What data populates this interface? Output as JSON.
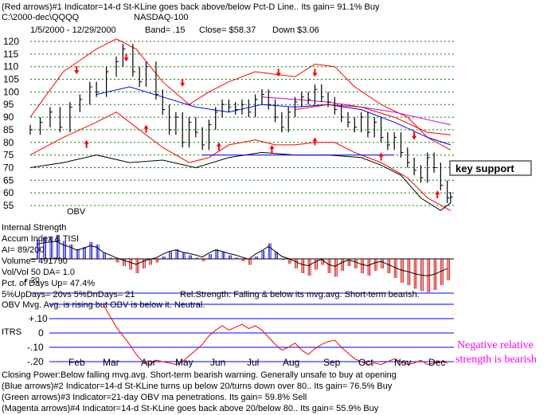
{
  "header": {
    "line1": "(Red arrows)#1 Indicator=14-d St-KLine goes back above/below Pct-D Line.. Its gain= 91.1% Buy",
    "line2": "C:\\2000-dec\\QQQQ",
    "title": "NASDAQ-100",
    "line3_dates": "1/5/2000 - 12/29/2000",
    "line3_band": "Band= .15",
    "line3_close": "Close= $58.37",
    "line3_change": "Down $3.06"
  },
  "annotations": {
    "key_support": "key support",
    "obv": "OBV",
    "negative_rs_1": "Negative relative",
    "negative_rs_2": "strength is bearish"
  },
  "stats": {
    "internal_strength": "Internal Strength",
    "accum": "Accum Index & TISI",
    "ai": "AI= 89/200",
    "volume": "Volume= 491790",
    "volvol": "Vol/Vol 50 DA= 1.0",
    "pct_up": "Pct. of Days Up= 47.4%",
    "updays": "5%UpDays= 20vs 5%DnDays= 21",
    "relstrength": "Rel.Strength: Falling & below its mvg.avg. Short-term bearish.",
    "obv_note": "OBV Mvg. Avg. is rising but OBV is below it. Neutral.",
    "ai_label_20": "+.20"
  },
  "itrs": {
    "label": "ITRS",
    "ticks": [
      "+.20",
      "+.10",
      "0",
      "-.10",
      "-.20"
    ]
  },
  "footer": {
    "line1": "Closing Power:Below falling mvg.avg. Short-term bearish warning. Generally unsafe to buy at opening",
    "line2": "(Blue arrows)#2 Indicator=14-d St-KLine turns up below 20/turns down over 80.. Its gain= 76.5% Buy",
    "line3": "(Green arrows)#3 Indicator=21-day OBV ma penetrations. Its gain= 59.8% Sell",
    "line4": "(Magenta arrows)#4 Indicator=14-d St-KLine goes back above 20/below 80.. Its gain= 55.9% Buy"
  },
  "colors": {
    "price": "#000000",
    "bands": "#ff0000",
    "mavg_blue": "#0000ff",
    "mavg_magenta": "#cc00cc",
    "grid": "#008000",
    "accum_pos": "#0000cc",
    "accum_neg": "#cc0000",
    "itrs": "#ff0000",
    "note": "#ff00ff"
  },
  "chart_data": {
    "type": "line",
    "title": "NASDAQ-100",
    "price_panel": {
      "y_ticks": [
        120,
        115,
        110,
        105,
        100,
        95,
        90,
        85,
        80,
        75,
        70,
        65,
        60,
        55
      ],
      "ylim": [
        53,
        122
      ],
      "months": [
        "Feb",
        "Mar",
        "Apr",
        "May",
        "Jun",
        "Jul",
        "Aug",
        "Sep",
        "Oct",
        "Nov",
        "Dec"
      ],
      "close_series": [
        [
          0,
          85
        ],
        [
          3,
          88
        ],
        [
          6,
          92
        ],
        [
          9,
          86
        ],
        [
          12,
          94
        ],
        [
          15,
          97
        ],
        [
          18,
          102
        ],
        [
          20,
          100
        ],
        [
          23,
          108
        ],
        [
          26,
          112
        ],
        [
          28,
          117
        ],
        [
          31,
          108
        ],
        [
          33,
          104
        ],
        [
          35,
          110
        ],
        [
          38,
          99
        ],
        [
          40,
          93
        ],
        [
          42,
          85
        ],
        [
          44,
          90
        ],
        [
          46,
          80
        ],
        [
          48,
          88
        ],
        [
          50,
          84
        ],
        [
          52,
          79
        ],
        [
          54,
          87
        ],
        [
          56,
          92
        ],
        [
          58,
          95
        ],
        [
          60,
          94
        ],
        [
          62,
          93
        ],
        [
          64,
          95
        ],
        [
          66,
          92
        ],
        [
          68,
          97
        ],
        [
          70,
          99
        ],
        [
          72,
          95
        ],
        [
          74,
          90
        ],
        [
          76,
          86
        ],
        [
          78,
          92
        ],
        [
          80,
          96
        ],
        [
          82,
          98
        ],
        [
          84,
          97
        ],
        [
          86,
          101
        ],
        [
          88,
          98
        ],
        [
          90,
          96
        ],
        [
          92,
          93
        ],
        [
          94,
          90
        ],
        [
          96,
          88
        ],
        [
          98,
          86
        ],
        [
          100,
          90
        ],
        [
          102,
          84
        ],
        [
          104,
          88
        ],
        [
          106,
          82
        ],
        [
          108,
          79
        ],
        [
          110,
          82
        ],
        [
          112,
          76
        ],
        [
          114,
          72
        ],
        [
          116,
          69
        ],
        [
          118,
          66
        ],
        [
          120,
          74
        ],
        [
          122,
          70
        ],
        [
          124,
          63
        ],
        [
          126,
          58
        ],
        [
          127,
          58.37
        ]
      ],
      "upper_band": [
        [
          0,
          90
        ],
        [
          10,
          108
        ],
        [
          20,
          117
        ],
        [
          26,
          121
        ],
        [
          32,
          117
        ],
        [
          40,
          104
        ],
        [
          48,
          95
        ],
        [
          54,
          100
        ],
        [
          60,
          104
        ],
        [
          68,
          108
        ],
        [
          74,
          107
        ],
        [
          80,
          106
        ],
        [
          86,
          111
        ],
        [
          92,
          110
        ],
        [
          98,
          102
        ],
        [
          106,
          95
        ],
        [
          114,
          90
        ],
        [
          120,
          82
        ],
        [
          127,
          77
        ]
      ],
      "lower_band": [
        [
          0,
          75
        ],
        [
          10,
          82
        ],
        [
          20,
          88
        ],
        [
          26,
          92
        ],
        [
          32,
          86
        ],
        [
          40,
          78
        ],
        [
          48,
          72
        ],
        [
          54,
          74
        ],
        [
          60,
          79
        ],
        [
          68,
          81
        ],
        [
          74,
          79
        ],
        [
          80,
          79
        ],
        [
          86,
          80
        ],
        [
          92,
          80
        ],
        [
          98,
          76
        ],
        [
          106,
          72
        ],
        [
          114,
          66
        ],
        [
          120,
          58
        ],
        [
          127,
          53
        ]
      ],
      "ma_blue": [
        [
          20,
          99
        ],
        [
          30,
          102
        ],
        [
          40,
          98
        ],
        [
          50,
          94
        ],
        [
          60,
          92
        ],
        [
          70,
          95
        ],
        [
          80,
          94
        ],
        [
          90,
          95
        ],
        [
          100,
          93
        ],
        [
          110,
          88
        ],
        [
          120,
          82
        ],
        [
          127,
          79
        ]
      ],
      "ma_magenta": [
        [
          70,
          98
        ],
        [
          80,
          97
        ],
        [
          90,
          96
        ],
        [
          100,
          94
        ],
        [
          110,
          92
        ],
        [
          120,
          89
        ],
        [
          127,
          87
        ]
      ],
      "ma_red_upper": [
        [
          80,
          93
        ],
        [
          90,
          95
        ],
        [
          100,
          94
        ],
        [
          110,
          90
        ],
        [
          120,
          84
        ],
        [
          127,
          83
        ]
      ],
      "obv": [
        [
          0,
          70
        ],
        [
          10,
          72
        ],
        [
          20,
          75
        ],
        [
          30,
          72
        ],
        [
          40,
          73
        ],
        [
          50,
          70
        ],
        [
          60,
          74
        ],
        [
          70,
          76
        ],
        [
          80,
          75
        ],
        [
          90,
          75
        ],
        [
          100,
          74
        ],
        [
          106,
          71
        ],
        [
          112,
          67
        ],
        [
          118,
          58
        ],
        [
          124,
          53
        ],
        [
          127,
          56
        ]
      ],
      "key_support_level": 75,
      "red_up_arrows": [
        [
          17,
          81
        ],
        [
          35,
          87
        ],
        [
          57,
          80
        ],
        [
          73,
          79
        ],
        [
          86,
          82
        ],
        [
          106,
          76
        ],
        [
          123,
          61
        ]
      ],
      "red_down_arrows": [
        [
          14,
          107
        ],
        [
          29,
          112
        ],
        [
          46,
          102
        ],
        [
          75,
          106
        ],
        [
          86,
          106
        ],
        [
          116,
          81
        ]
      ]
    },
    "accum_panel": {
      "ylim": [
        -0.3,
        0.3
      ],
      "bars": [
        [
          2,
          0.16
        ],
        [
          4,
          0.18
        ],
        [
          6,
          0.19
        ],
        [
          8,
          0.2
        ],
        [
          10,
          0.15
        ],
        [
          12,
          0.12
        ],
        [
          14,
          0.08
        ],
        [
          16,
          0.1
        ],
        [
          18,
          0.14
        ],
        [
          20,
          0.12
        ],
        [
          22,
          0.05
        ],
        [
          24,
          0.01
        ],
        [
          26,
          -0.03
        ],
        [
          28,
          -0.06
        ],
        [
          30,
          -0.09
        ],
        [
          32,
          -0.12
        ],
        [
          34,
          -0.08
        ],
        [
          36,
          -0.05
        ],
        [
          38,
          -0.03
        ],
        [
          40,
          0.02
        ],
        [
          42,
          0.06
        ],
        [
          44,
          0.08
        ],
        [
          46,
          0.05
        ],
        [
          48,
          0.03
        ],
        [
          50,
          0.01
        ],
        [
          52,
          -0.02
        ],
        [
          54,
          0.04
        ],
        [
          56,
          0.08
        ],
        [
          58,
          0.06
        ],
        [
          60,
          0.03
        ],
        [
          62,
          0.01
        ],
        [
          64,
          -0.02
        ],
        [
          66,
          -0.05
        ],
        [
          68,
          0.02
        ],
        [
          70,
          0.07
        ],
        [
          72,
          0.13
        ],
        [
          74,
          0.06
        ],
        [
          76,
          -0.01
        ],
        [
          78,
          -0.04
        ],
        [
          80,
          -0.08
        ],
        [
          82,
          -0.12
        ],
        [
          84,
          -0.14
        ],
        [
          86,
          -0.09
        ],
        [
          88,
          -0.05
        ],
        [
          90,
          -0.12
        ],
        [
          92,
          -0.15
        ],
        [
          94,
          -0.1
        ],
        [
          96,
          -0.06
        ],
        [
          98,
          -0.08
        ],
        [
          100,
          -0.12
        ],
        [
          102,
          -0.14
        ],
        [
          104,
          -0.1
        ],
        [
          106,
          -0.08
        ],
        [
          108,
          -0.12
        ],
        [
          110,
          -0.16
        ],
        [
          112,
          -0.2
        ],
        [
          114,
          -0.22
        ],
        [
          116,
          -0.25
        ],
        [
          118,
          -0.27
        ],
        [
          120,
          -0.28
        ],
        [
          122,
          -0.26
        ],
        [
          124,
          -0.22
        ],
        [
          126,
          -0.18
        ]
      ]
    },
    "itrs_panel": {
      "type": "line",
      "ylim": [
        -0.22,
        0.22
      ],
      "y_ticks": [
        0.2,
        0.1,
        0,
        -0.1,
        -0.2
      ],
      "series": [
        [
          22,
          0.2
        ],
        [
          24,
          0.12
        ],
        [
          26,
          0.04
        ],
        [
          28,
          -0.02
        ],
        [
          30,
          -0.08
        ],
        [
          32,
          -0.15
        ],
        [
          34,
          -0.2
        ],
        [
          36,
          -0.22
        ],
        [
          38,
          -0.19
        ],
        [
          40,
          -0.2
        ],
        [
          42,
          -0.21
        ],
        [
          44,
          -0.22
        ],
        [
          46,
          -0.2
        ],
        [
          48,
          -0.16
        ],
        [
          50,
          -0.12
        ],
        [
          52,
          -0.08
        ],
        [
          54,
          -0.02
        ],
        [
          56,
          0.02
        ],
        [
          58,
          0.05
        ],
        [
          60,
          0.02
        ],
        [
          62,
          0.04
        ],
        [
          64,
          0.06
        ],
        [
          66,
          0.03
        ],
        [
          68,
          0.05
        ],
        [
          70,
          0.02
        ],
        [
          72,
          -0.03
        ],
        [
          74,
          -0.08
        ],
        [
          76,
          -0.12
        ],
        [
          78,
          -0.1
        ],
        [
          80,
          -0.07
        ],
        [
          82,
          -0.12
        ],
        [
          84,
          -0.15
        ],
        [
          86,
          -0.11
        ],
        [
          88,
          -0.08
        ],
        [
          90,
          -0.06
        ],
        [
          92,
          -0.05
        ],
        [
          94,
          -0.1
        ],
        [
          96,
          -0.14
        ],
        [
          98,
          -0.18
        ],
        [
          100,
          -0.2
        ],
        [
          102,
          -0.22
        ],
        [
          104,
          -0.21
        ],
        [
          106,
          -0.22
        ],
        [
          108,
          -0.2
        ],
        [
          110,
          -0.18
        ],
        [
          112,
          -0.2
        ],
        [
          114,
          -0.22
        ],
        [
          116,
          -0.21
        ],
        [
          118,
          -0.19
        ],
        [
          120,
          -0.22
        ],
        [
          122,
          -0.21
        ],
        [
          124,
          -0.2
        ],
        [
          126,
          -0.21
        ]
      ]
    }
  }
}
